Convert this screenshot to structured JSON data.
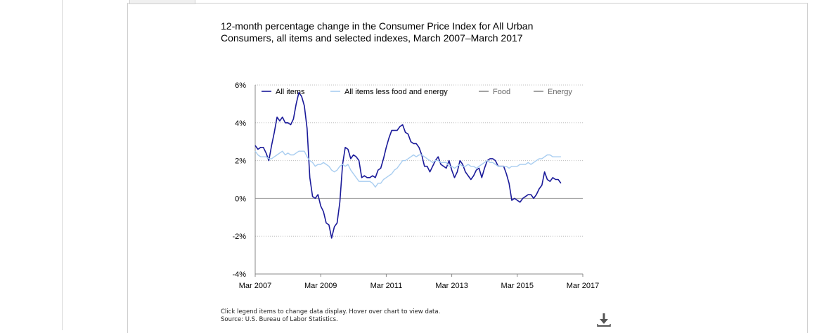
{
  "title": "12-month percentage change in the Consumer Price Index for All Urban Consumers, all items and selected indexes, March 2007–March 2017",
  "notes": {
    "instruction": "Click legend items to change data display. Hover over chart to view data.",
    "source": "Source: U.S. Bureau of Labor Statistics."
  },
  "download_icon": "download-icon",
  "colors": {
    "all_items": "#1a1a99",
    "core": "#a8cdf0",
    "food": "#8c8c8c",
    "energy": "#8c8c8c",
    "grid": "#bdbdbd",
    "axis": "#888888"
  },
  "chart_data": {
    "type": "line",
    "title": "12-month percentage change in the Consumer Price Index for All Urban Consumers, all items and selected indexes, March 2007–March 2017",
    "x_start": "Mar 2007",
    "x_end": "Mar 2017",
    "x_ticks": [
      "Mar 2007",
      "Mar 2009",
      "Mar 2011",
      "Mar 2013",
      "Mar 2015",
      "Mar 2017"
    ],
    "y_ticks": [
      "6%",
      "4%",
      "2%",
      "0%",
      "-2%",
      "-4%"
    ],
    "ylim": [
      -4,
      6
    ],
    "grid": true,
    "legend_position": "top",
    "series": [
      {
        "name": "All items",
        "visible": true,
        "start": "Mar 2007",
        "values": [
          2.8,
          2.6,
          2.7,
          2.7,
          2.4,
          2.0,
          2.8,
          3.5,
          4.3,
          4.1,
          4.3,
          4.0,
          4.0,
          3.9,
          4.2,
          5.0,
          5.6,
          5.4,
          4.9,
          3.7,
          1.1,
          0.1,
          0.0,
          0.2,
          -0.4,
          -0.7,
          -1.3,
          -1.4,
          -2.1,
          -1.5,
          -1.3,
          -0.2,
          1.8,
          2.7,
          2.6,
          2.1,
          2.3,
          2.2,
          2.0,
          1.1,
          1.2,
          1.1,
          1.1,
          1.2,
          1.1,
          1.5,
          1.6,
          2.1,
          2.7,
          3.2,
          3.6,
          3.6,
          3.6,
          3.8,
          3.9,
          3.5,
          3.4,
          3.0,
          2.9,
          2.9,
          2.7,
          2.3,
          1.7,
          1.7,
          1.4,
          1.7,
          2.0,
          2.2,
          1.8,
          1.7,
          1.6,
          2.0,
          1.5,
          1.1,
          1.4,
          2.0,
          1.8,
          1.4,
          1.2,
          1.0,
          1.2,
          1.5,
          1.6,
          1.1,
          1.6,
          2.0,
          2.1,
          2.1,
          2.0,
          1.7,
          1.7,
          1.7,
          1.3,
          0.8,
          -0.1,
          0.0,
          -0.1,
          -0.2,
          0.0,
          0.1,
          0.2,
          0.2,
          0.0,
          0.2,
          0.5,
          0.7,
          1.4,
          1.0,
          0.9,
          1.1,
          1.0,
          1.0,
          0.8
        ]
      },
      {
        "name": "All items less food and energy",
        "visible": true,
        "start": "Mar 2007",
        "values": [
          2.5,
          2.3,
          2.2,
          2.2,
          2.2,
          2.1,
          2.1,
          2.2,
          2.3,
          2.4,
          2.5,
          2.3,
          2.4,
          2.3,
          2.3,
          2.4,
          2.5,
          2.5,
          2.5,
          2.2,
          2.0,
          1.9,
          1.7,
          1.8,
          1.8,
          1.9,
          1.8,
          1.7,
          1.5,
          1.4,
          1.5,
          1.7,
          1.8,
          1.7,
          1.8,
          1.5,
          1.3,
          1.1,
          0.9,
          0.9,
          0.9,
          0.9,
          0.9,
          0.8,
          0.6,
          0.8,
          0.8,
          1.0,
          1.1,
          1.2,
          1.3,
          1.5,
          1.6,
          1.8,
          2.0,
          2.0,
          2.1,
          2.2,
          2.3,
          2.2,
          2.3,
          2.3,
          2.2,
          2.1,
          2.0,
          1.9,
          2.0,
          2.0,
          1.9,
          1.9,
          1.9,
          1.7,
          1.7,
          1.6,
          1.7,
          1.8,
          1.7,
          1.7,
          1.8,
          1.7,
          1.7,
          1.6,
          1.7,
          1.8,
          1.9,
          2.0,
          1.9,
          1.9,
          1.8,
          1.7,
          1.7,
          1.7,
          1.7,
          1.6,
          1.7,
          1.7,
          1.7,
          1.8,
          1.8,
          1.8,
          1.9,
          1.8,
          1.9,
          2.0,
          2.1,
          2.1,
          2.2,
          2.3,
          2.3,
          2.2,
          2.2,
          2.2,
          2.2
        ]
      },
      {
        "name": "Food",
        "visible": false,
        "values": []
      },
      {
        "name": "Energy",
        "visible": false,
        "values": []
      }
    ]
  }
}
